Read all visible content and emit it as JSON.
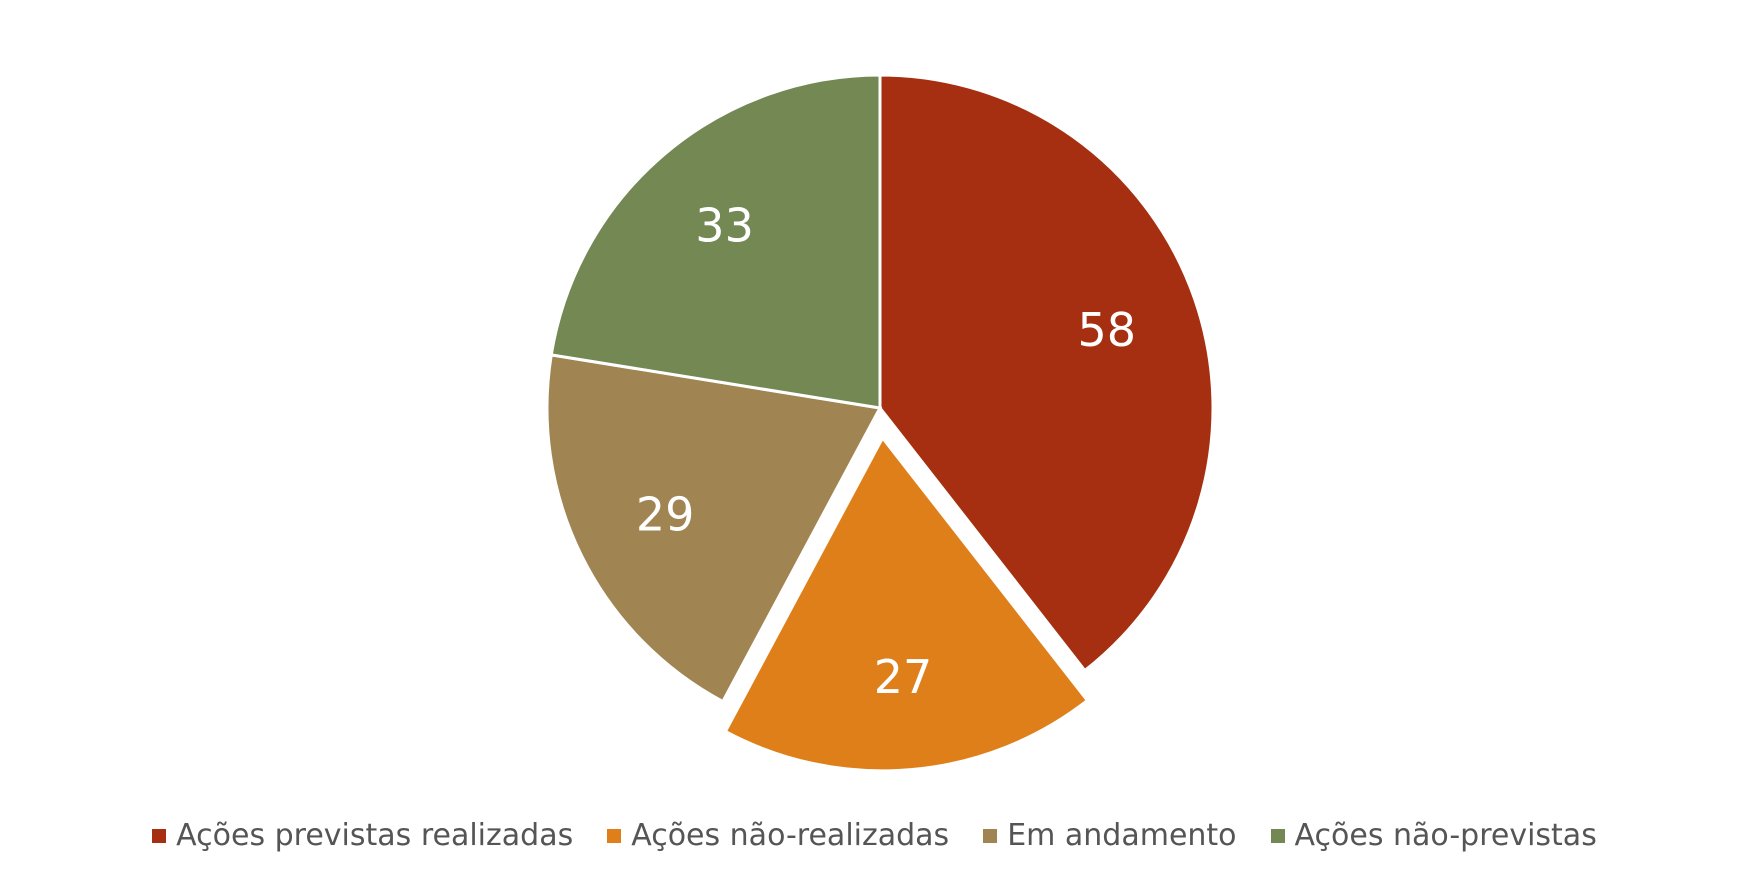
{
  "chart_data": {
    "type": "pie",
    "title": "",
    "legend_position": "bottom",
    "series": [
      {
        "values": [
          58,
          27,
          29,
          33
        ],
        "labels": [
          "Ações previstas realizadas",
          "Ações não-realizadas",
          "Em andamento",
          "Ações não-previstas"
        ],
        "colors": [
          "#a52f10",
          "#df7f1a",
          "#a08452",
          "#738853"
        ],
        "exploded": [
          false,
          true,
          false,
          false
        ]
      }
    ]
  }
}
